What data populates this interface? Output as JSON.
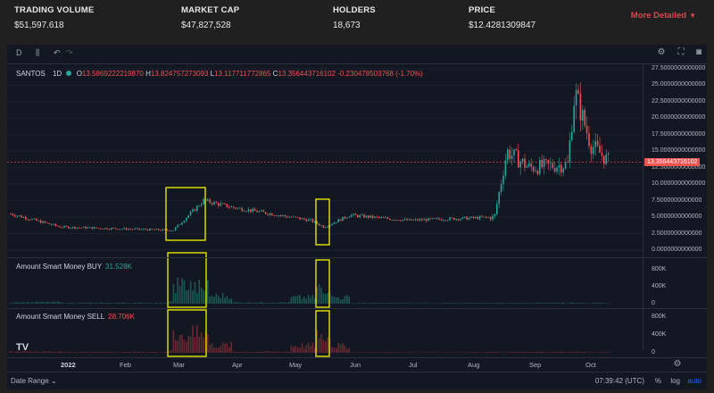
{
  "stats": {
    "trading_volume": {
      "label": "TRADING VOLUME",
      "value": "$51,597.618"
    },
    "market_cap": {
      "label": "MARKET CAP",
      "value": "$47,827,528"
    },
    "holders": {
      "label": "HOLDERS",
      "value": "18,673"
    },
    "price": {
      "label": "PRICE",
      "value": "$12.4281309847"
    },
    "more_label": "More Detailed"
  },
  "toolbar": {
    "interval": "D"
  },
  "legend": {
    "symbol": "SANTOS",
    "timeframe": "1D",
    "o_key": "O",
    "o": "13.5869222219870",
    "h_key": "H",
    "h": "13.824757273093",
    "l_key": "L",
    "l": "13.117711772865",
    "c_key": "C",
    "c": "13.356443716102",
    "change": "-0.230478503768 (-1.70%)"
  },
  "indicators": {
    "buy": {
      "label": "Amount Smart Money BUY",
      "value": "31.528K"
    },
    "sell": {
      "label": "Amount Smart Money SELL",
      "value": "28.706K"
    }
  },
  "price_axis": [
    "27.5000000000000",
    "25.0000000000000",
    "22.5000000000000",
    "20.0000000000000",
    "17.5000000000000",
    "15.0000000000000",
    "12.5000000000000",
    "10.0000000000000",
    "7.5000000000000",
    "5.0000000000000",
    "2.5000000000000",
    "0.0000000000000"
  ],
  "current_price_tag": "13.356443716102",
  "buy_axis": [
    "800K",
    "400K",
    "0"
  ],
  "sell_axis": [
    "800K",
    "400K",
    "0"
  ],
  "x_axis": [
    "2022",
    "Feb",
    "Mar",
    "Apr",
    "May",
    "Jun",
    "Jul",
    "Aug",
    "Sep",
    "Oct"
  ],
  "bottom_bar": {
    "date_range": "Date Range",
    "time": "07:39:42 (UTC)",
    "percent": "%",
    "log": "log",
    "auto": "auto"
  },
  "colors": {
    "up": "#26a69a",
    "down": "#ef5350",
    "highlight": "#e6e600",
    "accent": "#e0454f"
  },
  "chart_data": [
    {
      "type": "line",
      "title": "SANTOS 1D",
      "x": [
        "2022-01",
        "2022-02",
        "2022-03",
        "2022-03-15",
        "2022-04",
        "2022-05",
        "2022-05-20",
        "2022-06",
        "2022-07",
        "2022-08",
        "2022-08-15",
        "2022-09",
        "2022-09-20",
        "2022-09-25",
        "2022-10",
        "2022-10-12"
      ],
      "series": [
        {
          "name": "SANTOS",
          "values": [
            5.5,
            3.5,
            3.0,
            7.5,
            6.5,
            4.5,
            3.5,
            5.3,
            4.5,
            5.0,
            15.0,
            12.5,
            13.0,
            24.0,
            16.0,
            13.36
          ]
        }
      ],
      "ylim": [
        0,
        27.5
      ]
    },
    {
      "type": "bar",
      "title": "Amount Smart Money BUY",
      "categories": [
        "Jan",
        "Feb",
        "Mar",
        "Apr",
        "May",
        "Jun",
        "Jul",
        "Aug",
        "Sep",
        "Oct"
      ],
      "values": [
        150,
        80,
        750,
        120,
        600,
        60,
        50,
        70,
        90,
        60
      ],
      "ylim": [
        0,
        900
      ]
    },
    {
      "type": "bar",
      "title": "Amount Smart Money SELL",
      "categories": [
        "Jan",
        "Feb",
        "Mar",
        "Apr",
        "May",
        "Jun",
        "Jul",
        "Aug",
        "Sep",
        "Oct"
      ],
      "values": [
        120,
        70,
        700,
        100,
        650,
        50,
        40,
        60,
        80,
        50
      ],
      "ylim": [
        0,
        900
      ]
    }
  ]
}
